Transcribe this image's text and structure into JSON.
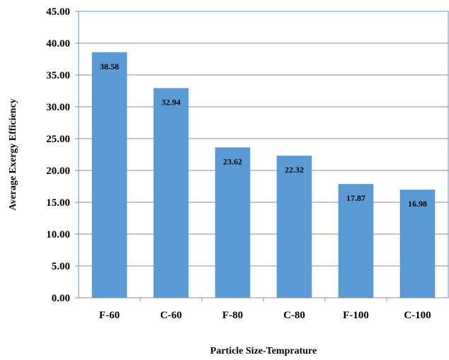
{
  "chart_data": {
    "type": "bar",
    "categories": [
      "F-60",
      "C-60",
      "F-80",
      "C-80",
      "F-100",
      "C-100"
    ],
    "values": [
      38.58,
      32.94,
      23.62,
      22.32,
      17.87,
      16.98
    ],
    "data_labels": [
      "38.58",
      "32.94",
      "23.62",
      "22.32",
      "17.87",
      "16.98"
    ],
    "y_ticks": [
      "0.00",
      "5.00",
      "10.00",
      "15.00",
      "20.00",
      "25.00",
      "30.00",
      "35.00",
      "40.00",
      "45.00"
    ],
    "ylim": [
      0,
      45
    ],
    "xlabel": "Particle Size-Temprature",
    "ylabel": "Average Exergy Efficiency",
    "grid": true,
    "legend": "none",
    "colors": {
      "bar": "#5b9bd5",
      "grid": "#8c8c8c",
      "axis": "#8c8c8c",
      "frame": "#5b9bd5"
    }
  }
}
